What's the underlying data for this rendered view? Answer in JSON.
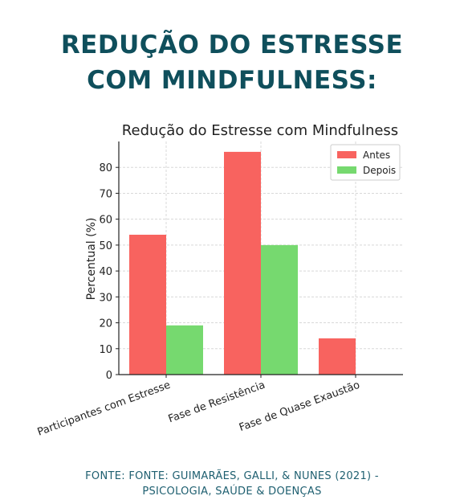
{
  "header": {
    "line1": "REDUÇÃO DO ESTRESSE",
    "line2": "COM MINDFULNESS:"
  },
  "footer": {
    "line1": "FONTE: FONTE: GUIMARÃES, GALLI, & NUNES (2021) -",
    "line2": "PSICOLOGIA, SAÚDE & DOENÇAS"
  },
  "chart_data": {
    "type": "bar",
    "title": "Redução do Estresse com Mindfulness",
    "xlabel": "",
    "ylabel": "Percentual (%)",
    "categories": [
      "Participantes com Estresse",
      "Fase de Resistência",
      "Fase de Quase Exaustão"
    ],
    "series": [
      {
        "name": "Antes",
        "values": [
          54,
          86,
          14
        ],
        "color": "#f8635f"
      },
      {
        "name": "Depois",
        "values": [
          19,
          50,
          0
        ],
        "color": "#76d96f"
      }
    ],
    "ylim": [
      0,
      90
    ],
    "yticks": [
      0,
      10,
      20,
      30,
      40,
      50,
      60,
      70,
      80
    ],
    "grid": true,
    "legend_position": "top-right"
  }
}
